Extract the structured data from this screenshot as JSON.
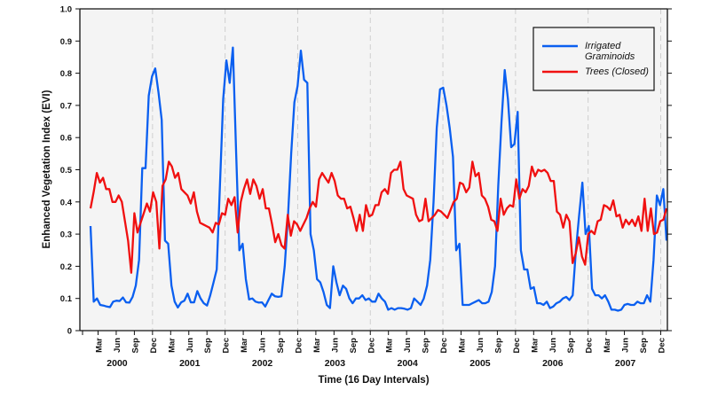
{
  "chart_data": {
    "type": "line",
    "title": "",
    "xlabel": "Time (16 Day Intervals)",
    "ylabel": "Enhanced Vegetation Index (EVI)",
    "ylim": [
      0,
      1.0
    ],
    "yticks": [
      "0",
      "0.1",
      "0.2",
      "0.3",
      "0.4",
      "0.5",
      "0.6",
      "0.7",
      "0.8",
      "0.9",
      "1.0"
    ],
    "month_labels": [
      "Mar",
      "Jun",
      "Sep",
      "Dec"
    ],
    "years": [
      "2000",
      "2001",
      "2002",
      "2003",
      "2004",
      "2005",
      "2006",
      "2007"
    ],
    "x_unit": "16-day composite index",
    "legend_position": "top-right",
    "series": [
      {
        "name": "Irrigated Graminoids",
        "name_lines": [
          "Irrigated",
          "Graminoids"
        ],
        "color": "#0a5ff0",
        "values": [
          0.325,
          0.09,
          0.1,
          0.08,
          0.078,
          0.075,
          0.073,
          0.09,
          0.093,
          0.092,
          0.103,
          0.088,
          0.087,
          0.105,
          0.14,
          0.22,
          0.505,
          0.505,
          0.73,
          0.79,
          0.815,
          0.74,
          0.655,
          0.28,
          0.27,
          0.14,
          0.09,
          0.072,
          0.088,
          0.093,
          0.115,
          0.088,
          0.088,
          0.123,
          0.1,
          0.085,
          0.078,
          0.11,
          0.15,
          0.19,
          0.45,
          0.72,
          0.84,
          0.77,
          0.88,
          0.55,
          0.25,
          0.27,
          0.16,
          0.097,
          0.1,
          0.09,
          0.087,
          0.088,
          0.075,
          0.095,
          0.115,
          0.107,
          0.105,
          0.107,
          0.2,
          0.35,
          0.55,
          0.71,
          0.76,
          0.87,
          0.78,
          0.77,
          0.3,
          0.25,
          0.16,
          0.15,
          0.12,
          0.08,
          0.07,
          0.2,
          0.15,
          0.11,
          0.14,
          0.13,
          0.1,
          0.085,
          0.1,
          0.1,
          0.11,
          0.095,
          0.1,
          0.09,
          0.09,
          0.115,
          0.1,
          0.09,
          0.065,
          0.07,
          0.065,
          0.07,
          0.07,
          0.068,
          0.065,
          0.07,
          0.1,
          0.09,
          0.08,
          0.1,
          0.14,
          0.22,
          0.4,
          0.63,
          0.75,
          0.755,
          0.7,
          0.63,
          0.54,
          0.25,
          0.27,
          0.08,
          0.08,
          0.08,
          0.085,
          0.09,
          0.095,
          0.085,
          0.085,
          0.09,
          0.12,
          0.2,
          0.45,
          0.65,
          0.81,
          0.72,
          0.57,
          0.58,
          0.68,
          0.25,
          0.19,
          0.19,
          0.13,
          0.135,
          0.085,
          0.085,
          0.08,
          0.09,
          0.07,
          0.075,
          0.085,
          0.09,
          0.1,
          0.105,
          0.095,
          0.11,
          0.25,
          0.36,
          0.46,
          0.3,
          0.325,
          0.13,
          0.11,
          0.11,
          0.1,
          0.11,
          0.09,
          0.065,
          0.065,
          0.062,
          0.065,
          0.08,
          0.083,
          0.08,
          0.08,
          0.09,
          0.085,
          0.085,
          0.11,
          0.09,
          0.22,
          0.42,
          0.39,
          0.44,
          0.28
        ]
      },
      {
        "name": "Trees (Closed)",
        "name_lines": [
          "Trees (Closed)"
        ],
        "color": "#f01010",
        "values": [
          0.38,
          0.43,
          0.49,
          0.46,
          0.475,
          0.44,
          0.44,
          0.4,
          0.4,
          0.42,
          0.4,
          0.34,
          0.28,
          0.18,
          0.365,
          0.305,
          0.335,
          0.365,
          0.395,
          0.37,
          0.43,
          0.4,
          0.255,
          0.45,
          0.47,
          0.525,
          0.51,
          0.475,
          0.49,
          0.44,
          0.43,
          0.42,
          0.395,
          0.43,
          0.37,
          0.335,
          0.33,
          0.325,
          0.32,
          0.305,
          0.335,
          0.33,
          0.365,
          0.36,
          0.41,
          0.39,
          0.415,
          0.305,
          0.4,
          0.44,
          0.47,
          0.425,
          0.47,
          0.45,
          0.41,
          0.44,
          0.38,
          0.38,
          0.33,
          0.275,
          0.3,
          0.265,
          0.255,
          0.36,
          0.295,
          0.34,
          0.33,
          0.31,
          0.33,
          0.35,
          0.38,
          0.4,
          0.385,
          0.47,
          0.49,
          0.475,
          0.46,
          0.49,
          0.465,
          0.42,
          0.41,
          0.41,
          0.38,
          0.385,
          0.35,
          0.31,
          0.36,
          0.31,
          0.39,
          0.355,
          0.36,
          0.39,
          0.39,
          0.43,
          0.44,
          0.425,
          0.49,
          0.5,
          0.5,
          0.525,
          0.44,
          0.42,
          0.415,
          0.41,
          0.36,
          0.34,
          0.345,
          0.41,
          0.34,
          0.35,
          0.36,
          0.375,
          0.37,
          0.36,
          0.35,
          0.375,
          0.4,
          0.41,
          0.46,
          0.455,
          0.43,
          0.445,
          0.525,
          0.48,
          0.49,
          0.42,
          0.41,
          0.385,
          0.345,
          0.34,
          0.31,
          0.41,
          0.36,
          0.38,
          0.39,
          0.385,
          0.47,
          0.41,
          0.44,
          0.43,
          0.45,
          0.51,
          0.48,
          0.5,
          0.495,
          0.5,
          0.49,
          0.465,
          0.465,
          0.37,
          0.36,
          0.32,
          0.36,
          0.34,
          0.21,
          0.24,
          0.29,
          0.23,
          0.205,
          0.3,
          0.31,
          0.3,
          0.34,
          0.345,
          0.39,
          0.385,
          0.375,
          0.405,
          0.355,
          0.36,
          0.32,
          0.345,
          0.33,
          0.345,
          0.325,
          0.355,
          0.31,
          0.41,
          0.31,
          0.38,
          0.3,
          0.305,
          0.34,
          0.345,
          0.38
        ]
      }
    ]
  }
}
